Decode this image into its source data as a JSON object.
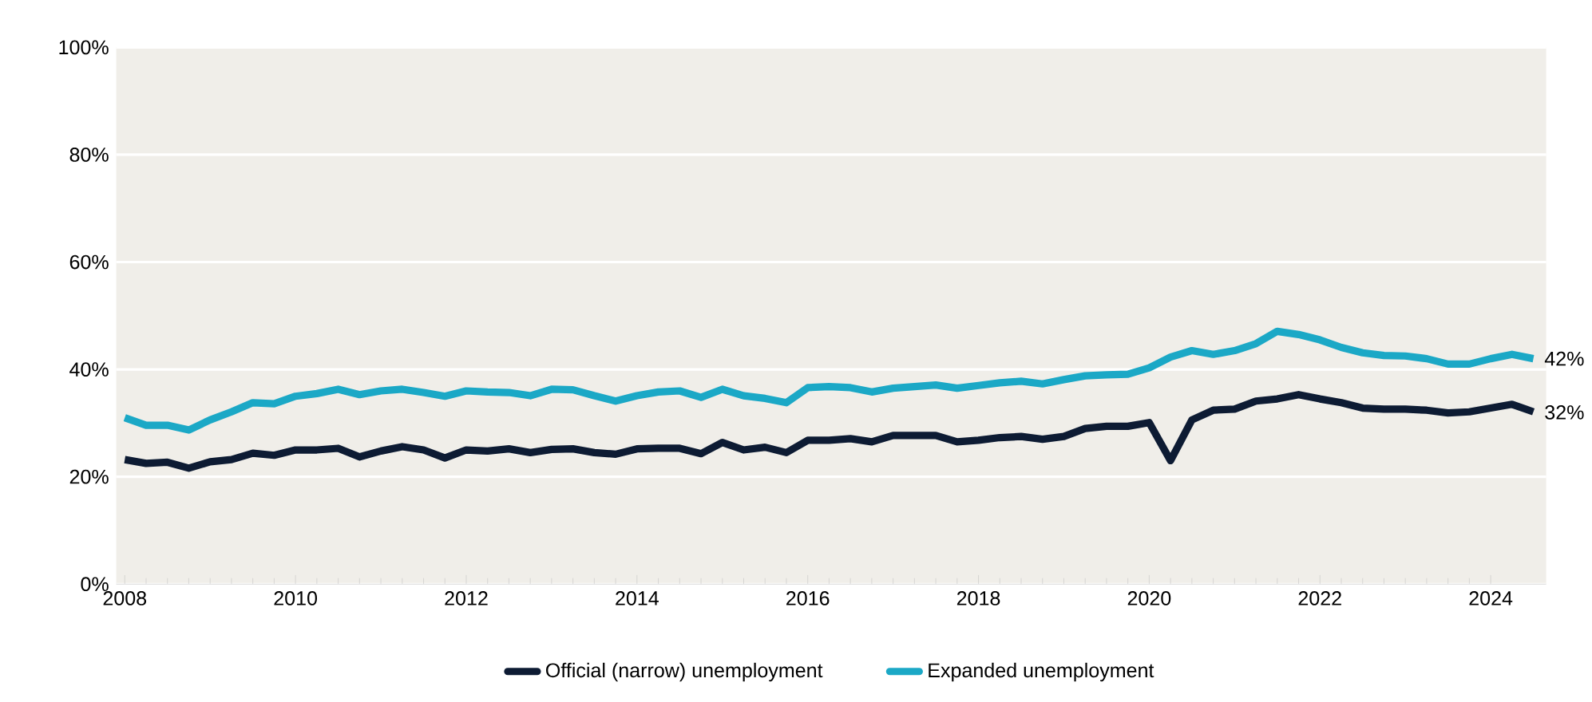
{
  "chart_data": {
    "type": "line",
    "x": [
      2008,
      2008.25,
      2008.5,
      2008.75,
      2009,
      2009.25,
      2009.5,
      2009.75,
      2010,
      2010.25,
      2010.5,
      2010.75,
      2011,
      2011.25,
      2011.5,
      2011.75,
      2012,
      2012.25,
      2012.5,
      2012.75,
      2013,
      2013.25,
      2013.5,
      2013.75,
      2014,
      2014.25,
      2014.5,
      2014.75,
      2015,
      2015.25,
      2015.5,
      2015.75,
      2016,
      2016.25,
      2016.5,
      2016.75,
      2017,
      2017.25,
      2017.5,
      2017.75,
      2018,
      2018.25,
      2018.5,
      2018.75,
      2019,
      2019.25,
      2019.5,
      2019.75,
      2020,
      2020.25,
      2020.5,
      2020.75,
      2021,
      2021.25,
      2021.5,
      2021.75,
      2022,
      2022.25,
      2022.5,
      2022.75,
      2023,
      2023.25,
      2023.5,
      2023.75,
      2024,
      2024.25,
      2024.5
    ],
    "series": [
      {
        "name": "Official (narrow) unemployment",
        "color": "#0d1b33",
        "values": [
          23.2,
          22.5,
          22.7,
          21.6,
          22.8,
          23.2,
          24.4,
          24,
          25,
          25,
          25.3,
          23.7,
          24.8,
          25.6,
          25,
          23.5,
          25,
          24.8,
          25.2,
          24.5,
          25.1,
          25.2,
          24.5,
          24.2,
          25.2,
          25.3,
          25.3,
          24.3,
          26.4,
          25,
          25.5,
          24.5,
          26.8,
          26.8,
          27.1,
          26.5,
          27.7,
          27.7,
          27.7,
          26.5,
          26.8,
          27.3,
          27.5,
          27,
          27.5,
          29,
          29.4,
          29.4,
          30.1,
          23,
          30.6,
          32.4,
          32.6,
          34.1,
          34.5,
          35.3,
          34.5,
          33.8,
          32.8,
          32.6,
          32.6,
          32.4,
          31.9,
          32.1,
          32.8,
          33.5,
          32.1
        ]
      },
      {
        "name": "Expanded unemployment",
        "color": "#1ba8c6",
        "values": [
          31,
          29.6,
          29.6,
          28.7,
          30.6,
          32.1,
          33.8,
          33.6,
          35,
          35.5,
          36.3,
          35.3,
          36,
          36.3,
          35.7,
          35,
          36,
          35.8,
          35.7,
          35.1,
          36.3,
          36.2,
          35.1,
          34.1,
          35.1,
          35.8,
          36,
          34.8,
          36.3,
          35.1,
          34.6,
          33.8,
          36.6,
          36.8,
          36.6,
          35.8,
          36.5,
          36.8,
          37.1,
          36.5,
          37,
          37.5,
          37.8,
          37.3,
          38.1,
          38.8,
          39,
          39.1,
          40.3,
          42.3,
          43.5,
          42.8,
          43.5,
          44.8,
          47.1,
          46.5,
          45.5,
          44.1,
          43.1,
          42.6,
          42.5,
          42,
          41,
          41,
          42,
          42.8,
          42
        ]
      }
    ],
    "xlim": [
      2007.9,
      2024.65
    ],
    "xticks": [
      2008,
      2010,
      2012,
      2014,
      2016,
      2018,
      2020,
      2022,
      2024
    ],
    "ylim": [
      0,
      100
    ],
    "yticks": [
      {
        "value": 0,
        "label": "0%"
      },
      {
        "value": 20,
        "label": "20%"
      },
      {
        "value": 40,
        "label": "40%"
      },
      {
        "value": 60,
        "label": "60%"
      },
      {
        "value": 80,
        "label": "80%"
      },
      {
        "value": 100,
        "label": "100%"
      }
    ],
    "annotations": [
      {
        "text": "42%",
        "x": 2024.5,
        "y": 42
      },
      {
        "text": "32%",
        "x": 2024.5,
        "y": 32
      }
    ],
    "grid": "y",
    "legend": "bottom",
    "marker": "none",
    "line_style": "solid"
  }
}
